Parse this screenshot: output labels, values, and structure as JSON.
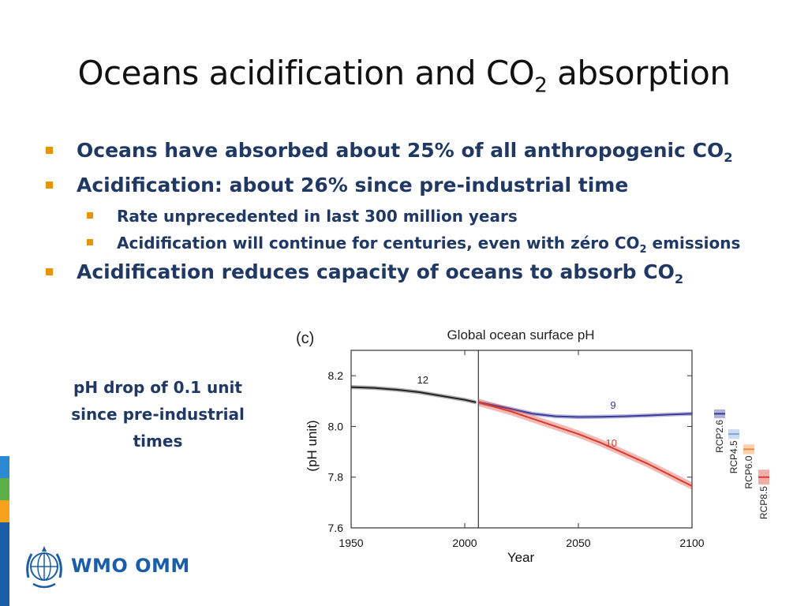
{
  "slide": {
    "title_main": "Oceans acidification and CO",
    "title_sub": "2",
    "title_rest": " absorption"
  },
  "bullets": {
    "b1": {
      "text": "Oceans have absorbed about 25% of all anthropogenic CO",
      "sub": "2"
    },
    "b2": {
      "text": "Acidification: about 26% since pre-industrial time"
    },
    "b2_sub1": {
      "text": "Rate unprecedented in last 300 million years"
    },
    "b2_sub2": {
      "text": "Acidification will continue for centuries, even with zéro CO",
      "sub": "2",
      "rest": " emissions"
    },
    "b3": {
      "text": "Acidification reduces capacity of oceans to absorb CO",
      "sub": "2"
    }
  },
  "side_note": {
    "line1": "pH drop of 0.1 unit",
    "line2": "since pre-industrial",
    "line3": "times"
  },
  "logo": {
    "text": "WMO OMM"
  },
  "colors": {
    "bullet_text": "#1f3864",
    "bullet_marker": "#e69500",
    "historical": "#222222",
    "rcp26": "#3d3a9a",
    "rcp45": "#7ea6dd",
    "rcp60": "#f08c3c",
    "rcp85": "#d93a2b",
    "logo": "#1a5ea8",
    "stripe": [
      "#2b8ad1",
      "#5bb146",
      "#f6a31b",
      "#1a5ea8"
    ]
  },
  "chart_data": {
    "type": "line",
    "panel_label": "(c)",
    "title": "Global ocean surface pH",
    "xlabel": "Year",
    "ylabel": "(pH unit)",
    "xlim": [
      1950,
      2100
    ],
    "ylim": [
      7.6,
      8.3
    ],
    "xticks": [
      1950,
      2000,
      2050,
      2100
    ],
    "yticks": [
      7.6,
      7.8,
      8.0,
      8.2
    ],
    "divider_year": 2006,
    "grid": false,
    "series": [
      {
        "key": "historical",
        "label": "12",
        "x": [
          1950,
          1960,
          1970,
          1980,
          1990,
          2000,
          2005
        ],
        "y": [
          8.155,
          8.152,
          8.145,
          8.135,
          8.12,
          8.105,
          8.095
        ],
        "spread": 0.008
      },
      {
        "key": "rcp26",
        "label": "9",
        "x": [
          2006,
          2020,
          2030,
          2040,
          2050,
          2060,
          2070,
          2080,
          2090,
          2100
        ],
        "y": [
          8.095,
          8.07,
          8.05,
          8.04,
          8.037,
          8.038,
          8.04,
          8.043,
          8.047,
          8.05
        ],
        "spread": 0.008
      },
      {
        "key": "rcp85",
        "label": "10",
        "x": [
          2006,
          2020,
          2030,
          2040,
          2050,
          2060,
          2070,
          2080,
          2090,
          2100
        ],
        "y": [
          8.095,
          8.06,
          8.03,
          8.0,
          7.97,
          7.935,
          7.895,
          7.855,
          7.81,
          7.765
        ],
        "spread": 0.015
      }
    ],
    "scenario_bars": [
      {
        "name": "RCP2.6",
        "key": "rcp26",
        "value": 8.05,
        "spread": 0.008
      },
      {
        "name": "RCP4.5",
        "key": "rcp45",
        "value": 7.97,
        "spread": 0.01
      },
      {
        "name": "RCP6.0",
        "key": "rcp60",
        "value": 7.91,
        "spread": 0.01
      },
      {
        "name": "RCP8.5",
        "key": "rcp85",
        "value": 7.8,
        "spread": 0.02
      }
    ]
  }
}
